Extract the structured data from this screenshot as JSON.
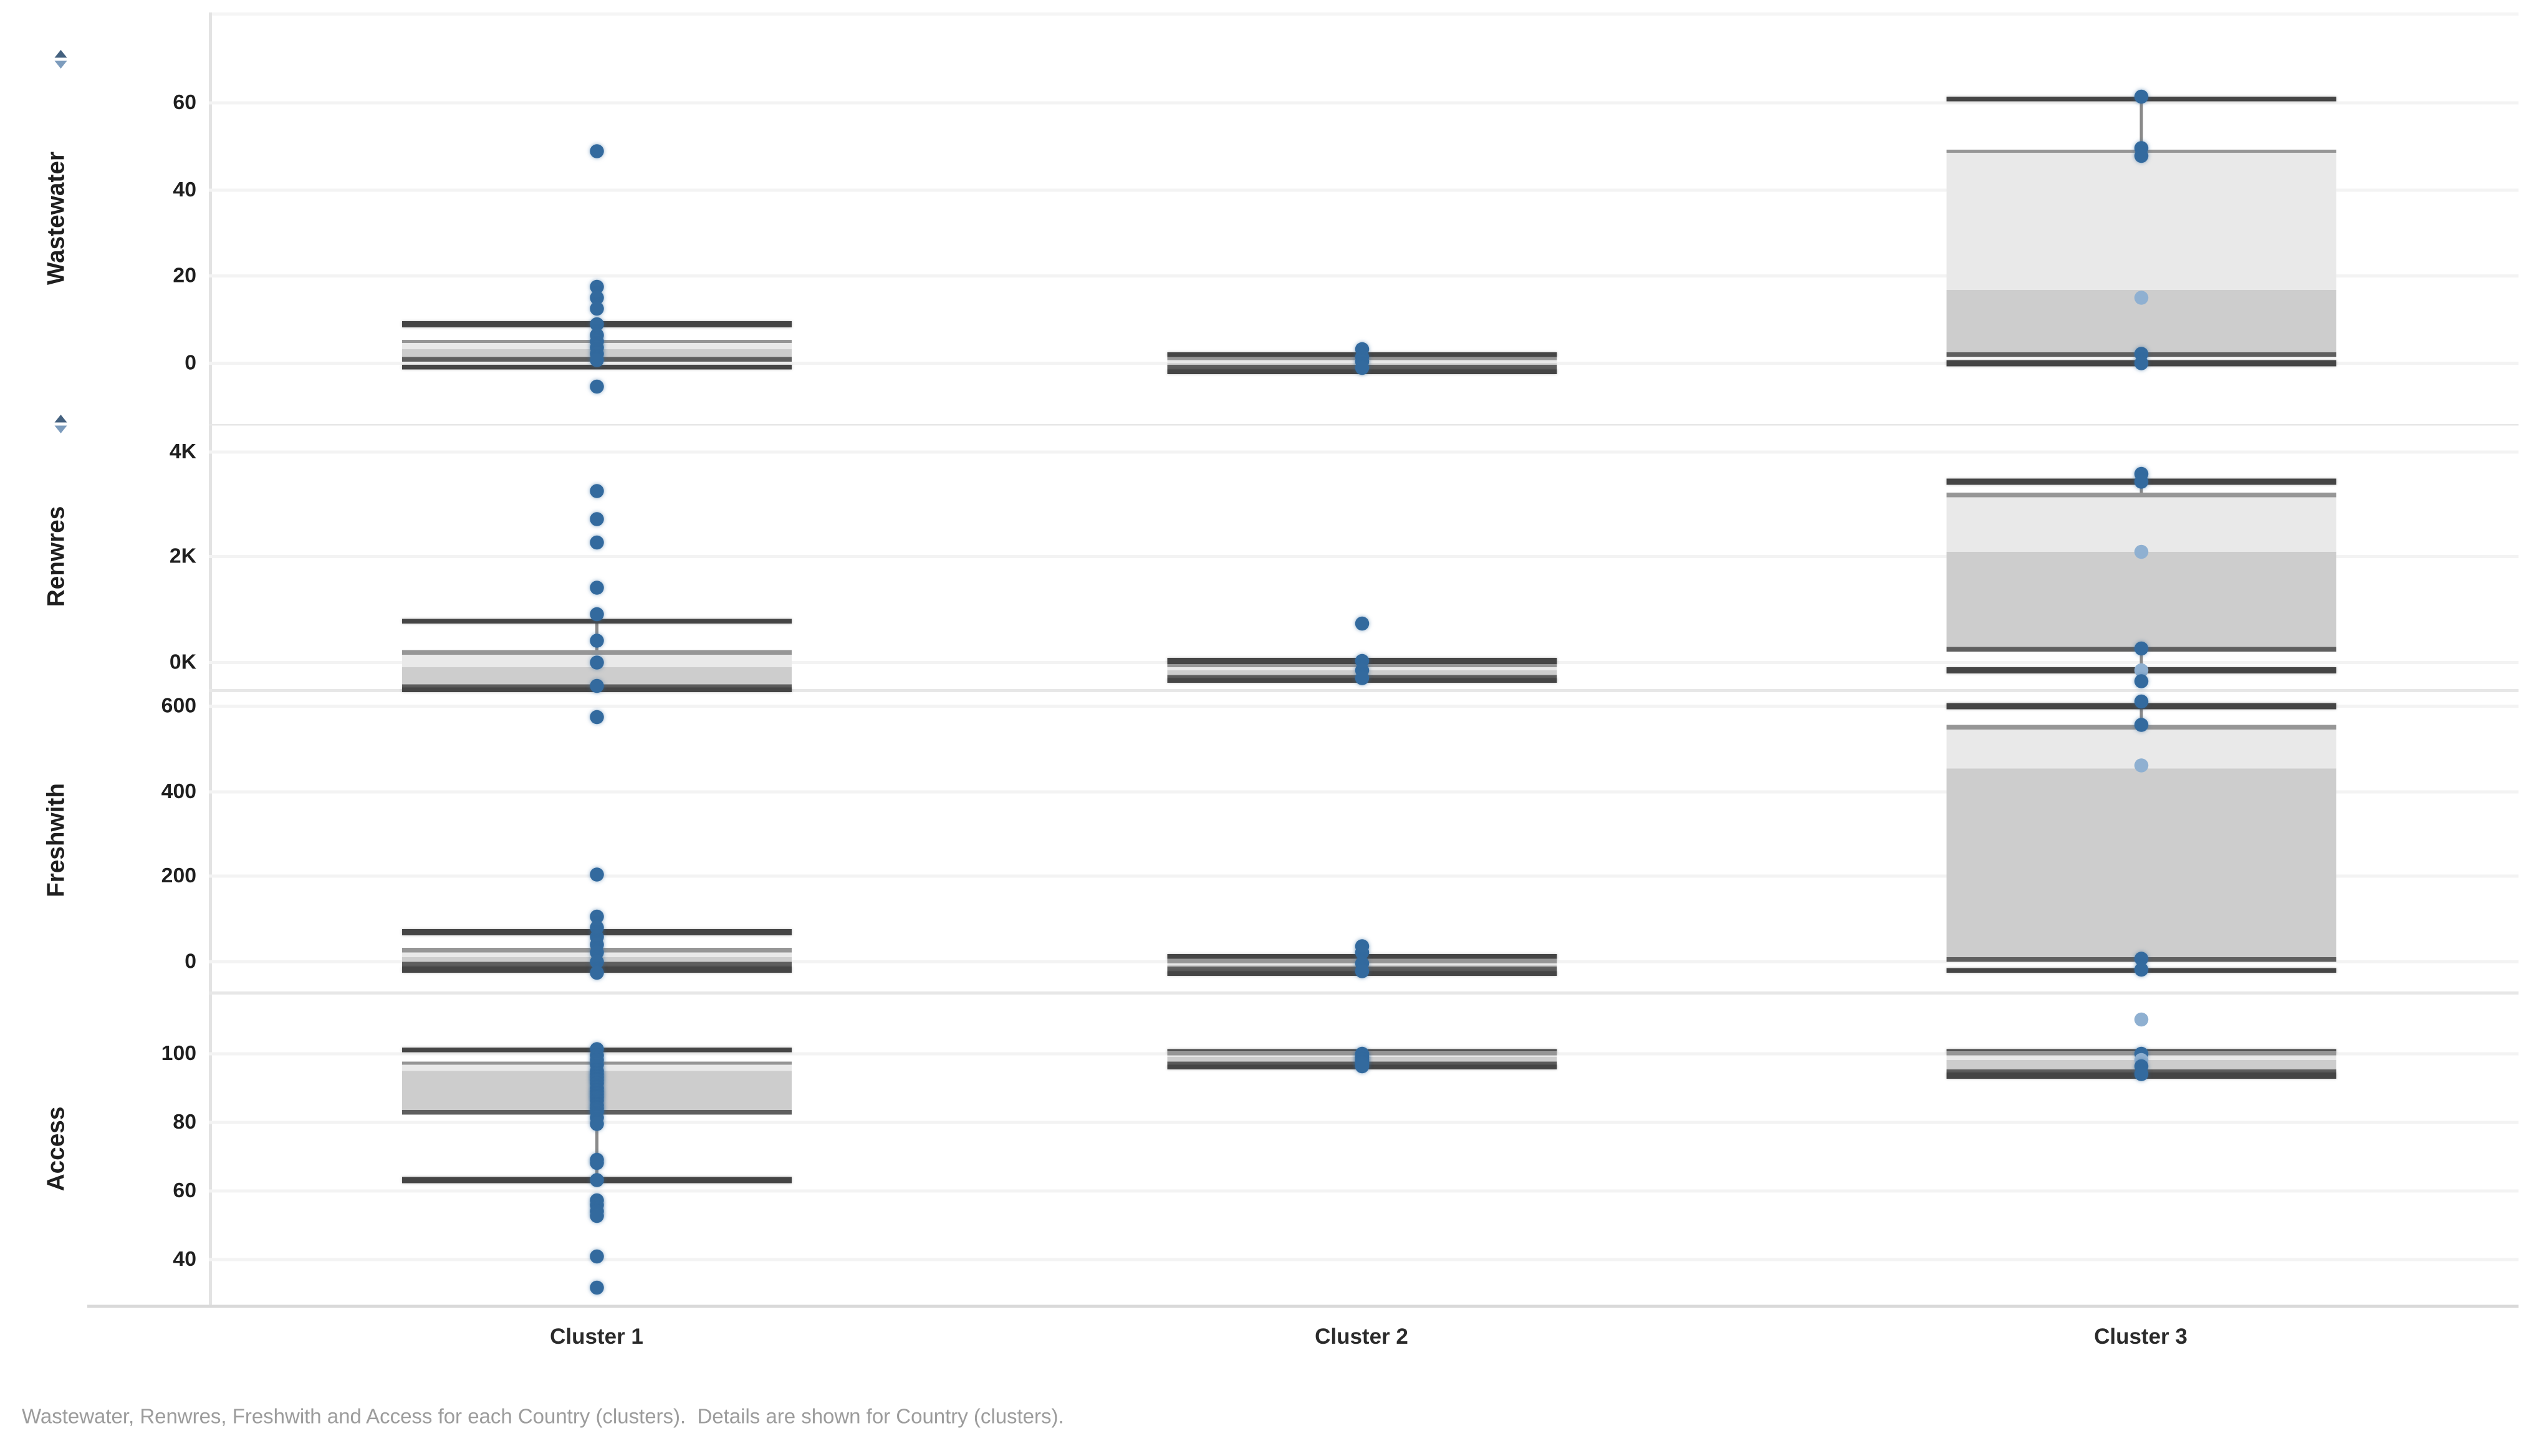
{
  "view": {
    "background": "#ffffff"
  },
  "caption": {
    "text": "Wastewater, Renwres, Freshwith and Access for each Country (clusters).  Details are shown for Country (clusters)."
  },
  "colors": {
    "point": "#336a9e",
    "point_light": "#8fb0d1",
    "box_upper_fill": "#e9e9e9",
    "box_lower_fill": "#cdcdcd",
    "whisker_line": "#454545",
    "q3_line": "#969696",
    "q1_line": "#5f5f5f",
    "connector": "#8a8a8a",
    "gridline": "#f3f3f3",
    "row_separator": "#e7e7e7",
    "axis_line": "#d9d9d9",
    "tick_text": "#1f1f1f",
    "measure_text": "#1f1f1f",
    "category_text": "#2b2b2b",
    "caption_text": "#9c9c9c",
    "sort_icon": "#44617f"
  },
  "chart_data": {
    "type": "boxplot",
    "layout": "small-multiples-rows",
    "grid": "faint-horizontal-gridlines",
    "legend": "none",
    "x_categories": [
      "Cluster 1",
      "Cluster 2",
      "Cluster 3"
    ],
    "rows": [
      {
        "measure": "Wastewater",
        "has_sort_icon": true,
        "y_range": {
          "top": 81,
          "bottom": -14
        },
        "ticks": [
          {
            "value": 60,
            "label": "60"
          },
          {
            "value": 40,
            "label": "40"
          },
          {
            "value": 20,
            "label": "20"
          },
          {
            "value": 0,
            "label": "0"
          }
        ],
        "cells": [
          {
            "cluster": "Cluster 1",
            "box": {
              "upper_whisker": 9,
              "q3": 5,
              "median": 3,
              "q1": 1,
              "lower_whisker": -1
            },
            "points": [
              {
                "v": 49
              },
              {
                "v": 17.5
              },
              {
                "v": 15
              },
              {
                "v": 12.5
              },
              {
                "v": 9
              },
              {
                "v": 6.5
              },
              {
                "v": 5
              },
              {
                "v": 3.5
              },
              {
                "v": 2
              },
              {
                "v": 0.5
              },
              {
                "v": -5.5
              }
            ]
          },
          {
            "cluster": "Cluster 2",
            "box": {
              "upper_whisker": 2,
              "q3": 1,
              "median": 0,
              "q1": -1,
              "lower_whisker": -2
            },
            "points": [
              {
                "v": 3
              },
              {
                "v": 1.5
              },
              {
                "v": 0.2
              },
              {
                "v": -1
              }
            ]
          },
          {
            "cluster": "Cluster 3",
            "box": {
              "upper_whisker": 61,
              "q3": 49,
              "median": 17,
              "q1": 2,
              "lower_whisker": 0
            },
            "points": [
              {
                "v": 61.5
              },
              {
                "v": 49.5
              },
              {
                "v": 48
              },
              {
                "v": 15,
                "light": true
              },
              {
                "v": 2
              },
              {
                "v": 0
              }
            ]
          }
        ]
      },
      {
        "measure": "Renwres",
        "has_sort_icon": true,
        "y_range": {
          "top": 4530,
          "bottom": -510
        },
        "ticks": [
          {
            "value": 4000,
            "label": "4K"
          },
          {
            "value": 2000,
            "label": "2K"
          },
          {
            "value": 0,
            "label": "0K"
          }
        ],
        "cells": [
          {
            "cluster": "Cluster 1",
            "box": {
              "upper_whisker": 780,
              "q3": 190,
              "median": -100,
              "q1": -450,
              "lower_whisker": -520
            },
            "points": [
              {
                "v": 3250
              },
              {
                "v": 2720
              },
              {
                "v": 2280
              },
              {
                "v": 1400
              },
              {
                "v": 900
              },
              {
                "v": 400
              },
              {
                "v": 0
              },
              {
                "v": -450
              }
            ]
          },
          {
            "cluster": "Cluster 2",
            "box": {
              "upper_whisker": 30,
              "q3": -60,
              "median": -160,
              "q1": -300,
              "lower_whisker": -340
            },
            "points": [
              {
                "v": 720
              },
              {
                "v": 30
              },
              {
                "v": -160
              },
              {
                "v": -300
              }
            ]
          },
          {
            "cluster": "Cluster 3",
            "box": {
              "upper_whisker": 3420,
              "q3": 3170,
              "median": 2100,
              "q1": 250,
              "lower_whisker": -150
            },
            "points": [
              {
                "v": 3570
              },
              {
                "v": 3420
              },
              {
                "v": 2100,
                "light": true
              },
              {
                "v": 250
              },
              {
                "v": -150,
                "light": true
              },
              {
                "v": -370
              }
            ]
          }
        ]
      },
      {
        "measure": "Freshwith",
        "has_sort_icon": false,
        "y_range": {
          "top": 640,
          "bottom": -70
        },
        "ticks": [
          {
            "value": 600,
            "label": "600"
          },
          {
            "value": 400,
            "label": "400"
          },
          {
            "value": 200,
            "label": "200"
          },
          {
            "value": 0,
            "label": "0"
          }
        ],
        "cells": [
          {
            "cluster": "Cluster 1",
            "box": {
              "upper_whisker": 70,
              "q3": 28,
              "median": 12,
              "q1": -6,
              "lower_whisker": -18
            },
            "points": [
              {
                "v": 575
              },
              {
                "v": 205
              },
              {
                "v": 105
              },
              {
                "v": 80
              },
              {
                "v": 60
              },
              {
                "v": 40
              },
              {
                "v": 20
              },
              {
                "v": 0
              },
              {
                "v": -25
              }
            ]
          },
          {
            "cluster": "Cluster 2",
            "box": {
              "upper_whisker": 10,
              "q3": 2,
              "median": -8,
              "q1": -18,
              "lower_whisker": -28
            },
            "points": [
              {
                "v": 35
              },
              {
                "v": 20
              },
              {
                "v": -5
              },
              {
                "v": -22
              }
            ]
          },
          {
            "cluster": "Cluster 3",
            "box": {
              "upper_whisker": 600,
              "q3": 550,
              "median": 455,
              "q1": 7,
              "lower_whisker": -20
            },
            "points": [
              {
                "v": 610
              },
              {
                "v": 555
              },
              {
                "v": 460,
                "light": true
              },
              {
                "v": 7
              },
              {
                "v": -20
              }
            ]
          }
        ]
      },
      {
        "measure": "Access",
        "has_sort_icon": false,
        "y_range": {
          "top": 118,
          "bottom": 26.5
        },
        "ticks": [
          {
            "value": 100,
            "label": "100"
          },
          {
            "value": 80,
            "label": "80"
          },
          {
            "value": 60,
            "label": "60"
          },
          {
            "value": 40,
            "label": "40"
          }
        ],
        "cells": [
          {
            "cluster": "Cluster 1",
            "box": {
              "upper_whisker": 101,
              "q3": 97,
              "median": 95,
              "q1": 83,
              "lower_whisker": 63
            },
            "points": [
              {
                "v": 101
              },
              {
                "v": 99.5
              },
              {
                "v": 98
              },
              {
                "v": 96.5
              },
              {
                "v": 95
              },
              {
                "v": 94
              },
              {
                "v": 93
              },
              {
                "v": 92
              },
              {
                "v": 91
              },
              {
                "v": 90
              },
              {
                "v": 89
              },
              {
                "v": 88
              },
              {
                "v": 87
              },
              {
                "v": 86
              },
              {
                "v": 85
              },
              {
                "v": 84
              },
              {
                "v": 83
              },
              {
                "v": 81
              },
              {
                "v": 79.5
              },
              {
                "v": 69
              },
              {
                "v": 68
              },
              {
                "v": 63
              },
              {
                "v": 57
              },
              {
                "v": 55.5
              },
              {
                "v": 54
              },
              {
                "v": 52.5
              },
              {
                "v": 40.5
              },
              {
                "v": 31.5
              }
            ]
          },
          {
            "cluster": "Cluster 2",
            "box": {
              "upper_whisker": 100.5,
              "q3": 100,
              "median": 99,
              "q1": 97,
              "lower_whisker": 96
            },
            "points": [
              {
                "v": 100
              },
              {
                "v": 99
              },
              {
                "v": 98
              },
              {
                "v": 97
              },
              {
                "v": 96
              }
            ]
          },
          {
            "cluster": "Cluster 3",
            "box": {
              "upper_whisker": 100.5,
              "q3": 100,
              "median": 98,
              "q1": 94.5,
              "lower_whisker": 93.5
            },
            "points": [
              {
                "v": 110,
                "light": true
              },
              {
                "v": 100
              },
              {
                "v": 98,
                "light": true
              },
              {
                "v": 96
              },
              {
                "v": 94
              }
            ]
          }
        ]
      }
    ]
  }
}
